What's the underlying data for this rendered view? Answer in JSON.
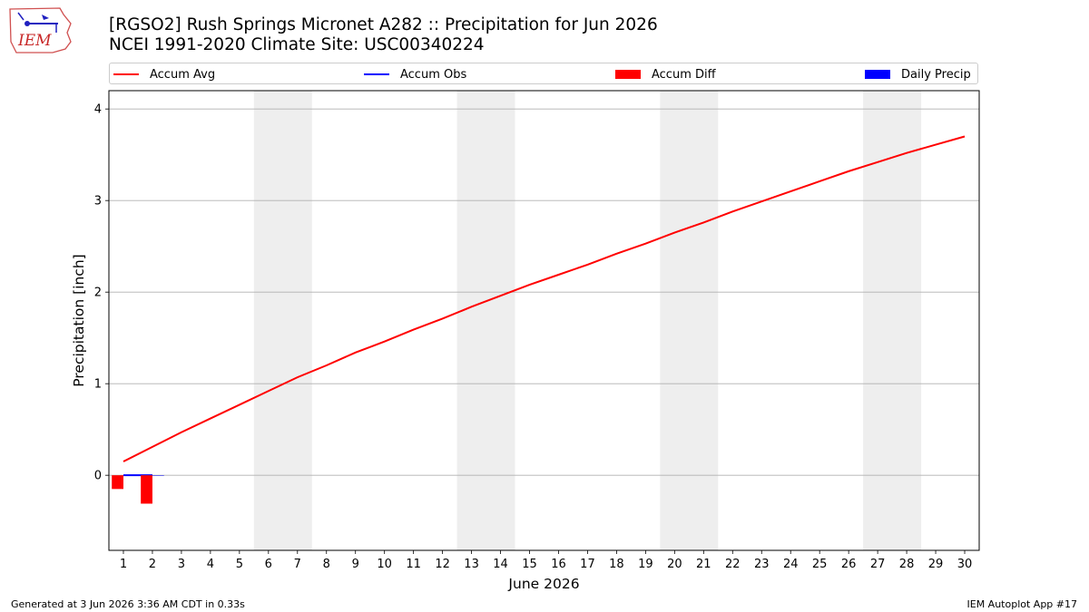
{
  "title": {
    "line1": "[RGSO2] Rush Springs Micronet A282 :: Precipitation for Jun 2026",
    "line2": "NCEI 1991-2020 Climate Site: USC00340224"
  },
  "logo": {
    "text": "IEM"
  },
  "legend": [
    {
      "label": "Accum Avg",
      "kind": "line",
      "color": "#ff0000"
    },
    {
      "label": "Accum Obs",
      "kind": "line",
      "color": "#0000ff"
    },
    {
      "label": "Accum Diff",
      "kind": "box",
      "color": "#ff0000"
    },
    {
      "label": "Daily Precip",
      "kind": "box",
      "color": "#0000ff"
    }
  ],
  "footer": {
    "left": "Generated at 3 Jun 2026 3:36 AM CDT in 0.33s",
    "right": "IEM Autoplot App #17"
  },
  "chart_data": {
    "type": "line",
    "title": "[RGSO2] Rush Springs Micronet A282 :: Precipitation for Jun 2026",
    "subtitle": "NCEI 1991-2020 Climate Site: USC00340224",
    "xlabel": "June 2026",
    "ylabel": "Precipitation [inch]",
    "x": [
      1,
      2,
      3,
      4,
      5,
      6,
      7,
      8,
      9,
      10,
      11,
      12,
      13,
      14,
      15,
      16,
      17,
      18,
      19,
      20,
      21,
      22,
      23,
      24,
      25,
      26,
      27,
      28,
      29,
      30
    ],
    "xlim": [
      0.5,
      30.5
    ],
    "ylim": [
      -0.82,
      4.2
    ],
    "yticks": [
      0,
      1,
      2,
      3,
      4
    ],
    "grid": "horizontal",
    "legend_placement": "top",
    "weekend_shading": [
      [
        6,
        7
      ],
      [
        13,
        14
      ],
      [
        20,
        21
      ],
      [
        27,
        28
      ]
    ],
    "series": [
      {
        "name": "Accum Avg",
        "type": "line",
        "color": "#ff0000",
        "x": [
          1,
          2,
          3,
          4,
          5,
          6,
          7,
          8,
          9,
          10,
          11,
          12,
          13,
          14,
          15,
          16,
          17,
          18,
          19,
          20,
          21,
          22,
          23,
          24,
          25,
          26,
          27,
          28,
          29,
          30
        ],
        "values": [
          0.15,
          0.31,
          0.47,
          0.62,
          0.77,
          0.92,
          1.07,
          1.2,
          1.34,
          1.46,
          1.59,
          1.71,
          1.84,
          1.96,
          2.08,
          2.19,
          2.3,
          2.42,
          2.53,
          2.65,
          2.76,
          2.88,
          2.99,
          3.1,
          3.21,
          3.32,
          3.42,
          3.52,
          3.61,
          3.7
        ]
      },
      {
        "name": "Accum Obs",
        "type": "line",
        "color": "#0000ff",
        "x": [
          1,
          2
        ],
        "values": [
          0.0,
          0.0
        ]
      },
      {
        "name": "Accum Diff",
        "type": "bar",
        "color": "#ff0000",
        "offset": -0.2,
        "x": [
          1,
          2
        ],
        "values": [
          -0.15,
          -0.31
        ]
      },
      {
        "name": "Daily Precip",
        "type": "bar",
        "color": "#0000ff",
        "offset": 0.2,
        "x": [
          1,
          2
        ],
        "values": [
          0.0,
          0.0
        ]
      }
    ]
  }
}
